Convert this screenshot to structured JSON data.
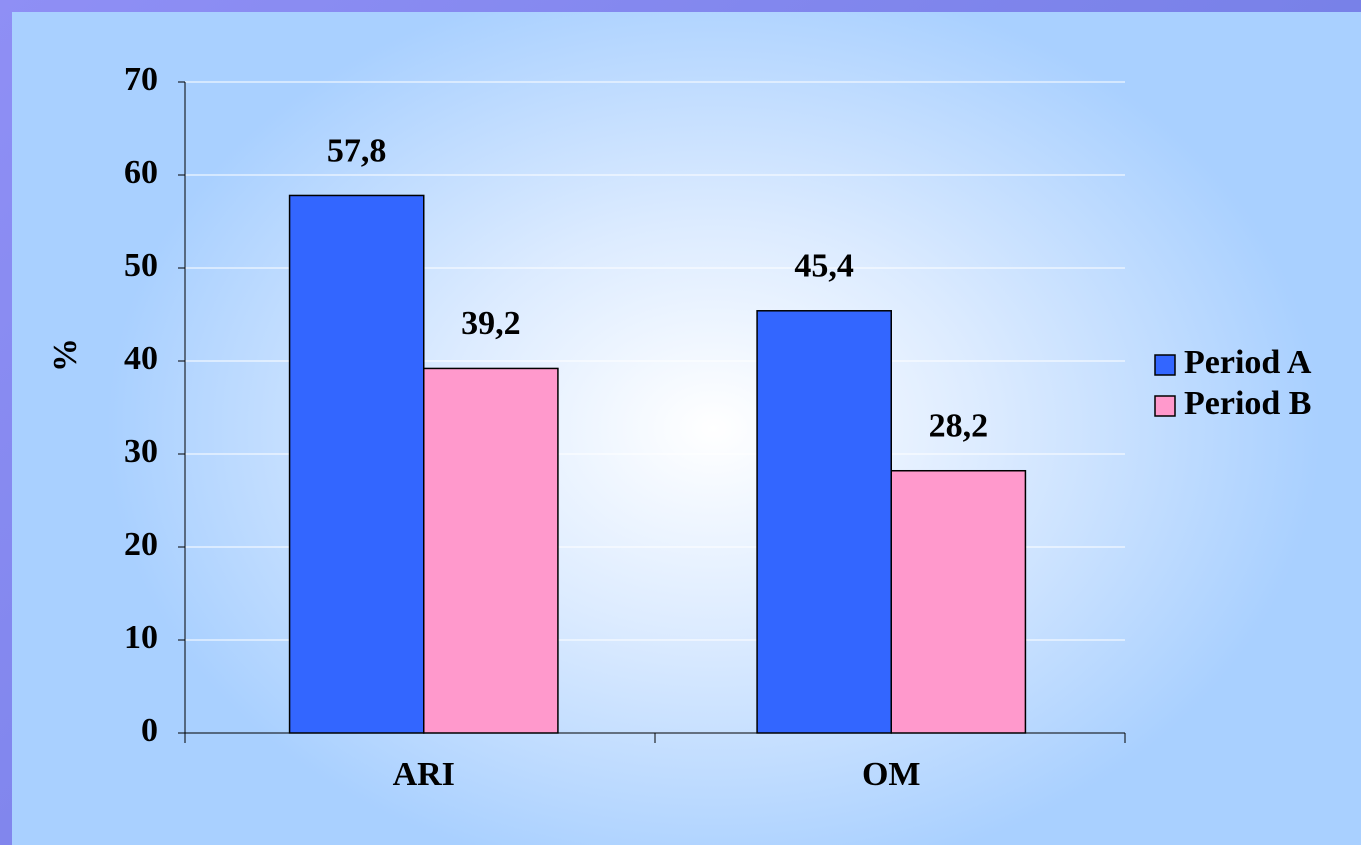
{
  "chart_data": {
    "type": "bar",
    "categories": [
      "ARI",
      "OM"
    ],
    "series": [
      {
        "name": "Period A",
        "color": "#3366ff",
        "values": [
          57.8,
          45.4
        ],
        "value_labels": [
          "57,8",
          "45,4"
        ]
      },
      {
        "name": "Period B",
        "color": "#ff99cc",
        "values": [
          39.2,
          28.2
        ],
        "value_labels": [
          "39,2",
          "28,2"
        ]
      }
    ],
    "ylabel": "%",
    "ylim": [
      0,
      70
    ],
    "yticks": [
      0,
      10,
      20,
      30,
      40,
      50,
      60,
      70
    ],
    "grid": true,
    "legend": "right"
  }
}
